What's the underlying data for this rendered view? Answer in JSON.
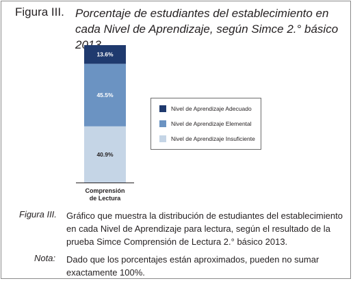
{
  "figure": {
    "label": "Figura III.",
    "title": "Porcentaje de estudiantes del establecimiento en cada Nivel de Aprendizaje, según Simce 2.° básico 2013"
  },
  "chart_data": {
    "type": "bar",
    "stacked": true,
    "categories": [
      "Comprensión de Lectura"
    ],
    "series": [
      {
        "name": "Nivel de Aprendizaje Insuficiente",
        "values": [
          40.9
        ],
        "label": "40.9%",
        "color": "#c5d5e6"
      },
      {
        "name": "Nivel de Aprendizaje Elemental",
        "values": [
          45.5
        ],
        "label": "45.5%",
        "color": "#6b93c2"
      },
      {
        "name": "Nivel de Aprendizaje Adecuado",
        "values": [
          13.6
        ],
        "label": "13.6%",
        "color": "#1f3a6e"
      }
    ],
    "legend_order": [
      "Nivel de Aprendizaje Adecuado",
      "Nivel de Aprendizaje Elemental",
      "Nivel de Aprendizaje Insuficiente"
    ],
    "legend_position": "right",
    "ylim": [
      0,
      100
    ],
    "grid": false
  },
  "caption": {
    "label": "Figura III.",
    "text": "Gráfico que muestra la distribución de estudiantes del establecimiento en cada Nivel de Aprendizaje para lectura, según el resultado de la prueba Simce Comprensión de Lectura 2.° básico 2013."
  },
  "note": {
    "label": "Nota:",
    "text": "Dado que los porcentajes están aproximados, pueden no sumar exactamente 100%."
  }
}
